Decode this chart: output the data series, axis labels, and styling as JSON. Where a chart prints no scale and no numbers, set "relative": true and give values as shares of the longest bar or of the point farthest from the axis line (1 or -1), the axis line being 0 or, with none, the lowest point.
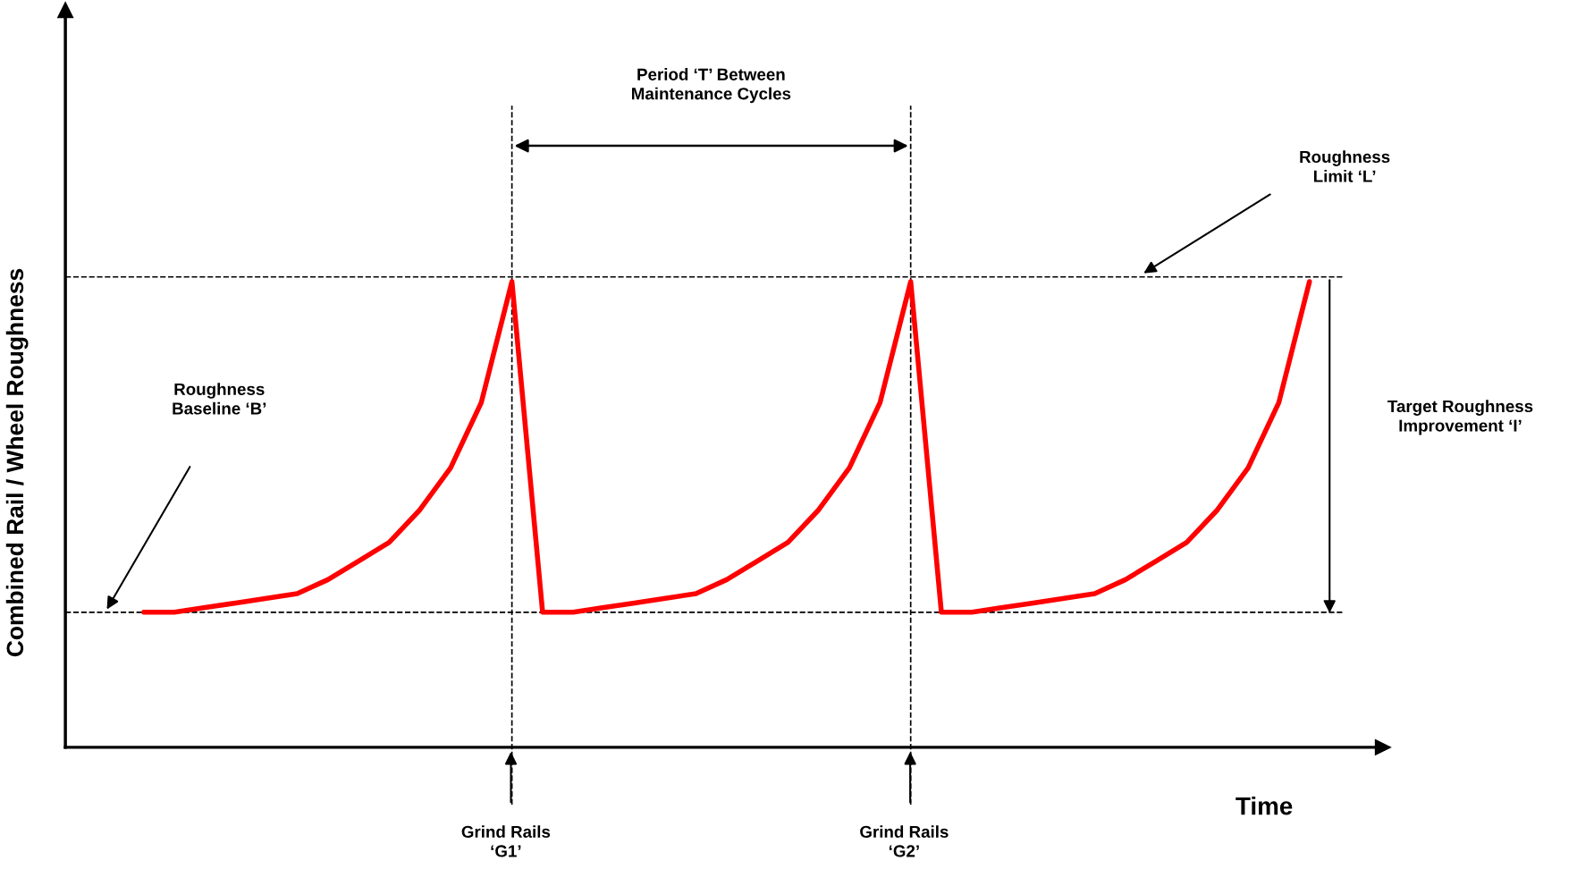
{
  "chart_data": {
    "type": "line",
    "relative": true,
    "xlabel": "Time",
    "ylabel": "Combined Rail / Wheel Roughness",
    "categories": [
      null,
      null,
      null,
      null,
      null,
      null,
      null,
      null,
      null,
      null,
      null,
      null,
      null,
      null,
      null,
      null,
      null,
      null,
      null,
      null,
      null,
      null,
      null,
      null,
      null,
      null,
      null,
      null,
      null,
      null,
      null,
      null,
      null,
      null,
      null,
      null,
      null,
      null,
      null
    ],
    "series": [
      {
        "color": "#ff0000",
        "values": [
          0.29,
          0.29,
          0.3,
          0.31,
          0.32,
          0.33,
          0.36,
          0.4,
          0.44,
          0.51,
          0.6,
          0.74,
          1.0,
          0.29,
          0.29,
          0.3,
          0.31,
          0.32,
          0.33,
          0.36,
          0.4,
          0.44,
          0.51,
          0.6,
          0.74,
          1.0,
          0.29,
          0.29,
          0.3,
          0.31,
          0.32,
          0.33,
          0.36,
          0.4,
          0.44,
          0.51,
          0.6,
          0.74,
          1.0
        ]
      }
    ],
    "ref_lines": [
      {
        "axis": "y",
        "value": 0.29,
        "color": "#000000",
        "line_style": "dashed"
      },
      {
        "axis": "y",
        "value": 1.01,
        "color": "#000000",
        "line_style": "dashed"
      }
    ],
    "annotations": [
      "Period ‘T’ Between\nMaintenance Cycles",
      "Roughness\nLimit ‘L’",
      "Roughness\nBaseline ‘B’",
      "Target Roughness\nImprovement ‘I’",
      "Grind Rails\n‘G1’",
      "Grind Rails\n‘G2’"
    ],
    "marker": "none",
    "line_style": "solid"
  }
}
